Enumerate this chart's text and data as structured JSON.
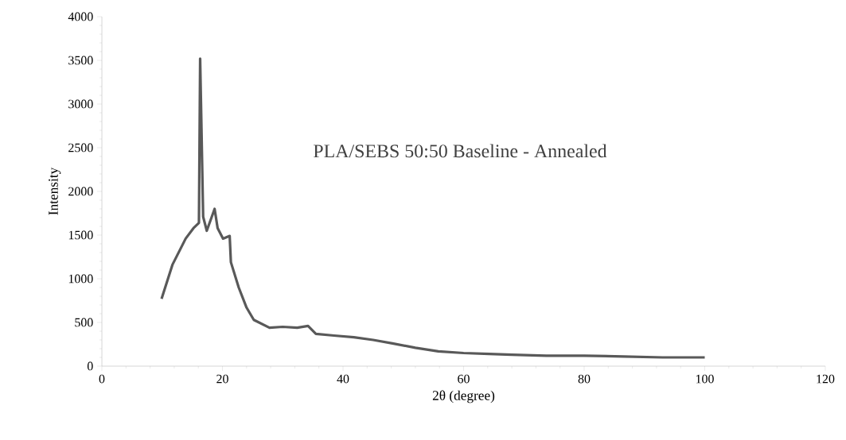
{
  "chart_data": {
    "type": "line",
    "xlabel": "2θ (degree)",
    "ylabel": "Intensity",
    "annotations": [
      "PLA/SEBS 50:50 Baseline - Annealed"
    ],
    "xlim": [
      0,
      120
    ],
    "xticks": [
      0,
      20,
      40,
      60,
      80,
      100,
      120
    ],
    "ylim": [
      0,
      4000
    ],
    "yticks": [
      0,
      500,
      1000,
      1500,
      2000,
      2500,
      3000,
      3500,
      4000
    ],
    "grid": false,
    "marker": "none",
    "line_style": "solid",
    "series": [
      {
        "color": "#595959",
        "x": [
          9.9,
          11.7,
          13.9,
          15.2,
          16.1,
          16.3,
          16.8,
          17.4,
          18.7,
          19.2,
          20.1,
          21.2,
          21.4,
          22.7,
          24.0,
          25.2,
          27.8,
          30.0,
          32.4,
          34.2,
          35.5,
          38.5,
          41.8,
          45.0,
          48.2,
          52.0,
          55.8,
          60.0,
          64.2,
          68.0,
          73.7,
          80.0,
          86.5,
          93.0,
          100.0
        ],
        "values": [
          770,
          1160,
          1460,
          1580,
          1640,
          3520,
          1710,
          1550,
          1800,
          1580,
          1460,
          1490,
          1190,
          900,
          670,
          530,
          440,
          450,
          440,
          460,
          370,
          350,
          330,
          300,
          260,
          210,
          170,
          150,
          140,
          130,
          120,
          120,
          110,
          100,
          100
        ]
      }
    ]
  }
}
